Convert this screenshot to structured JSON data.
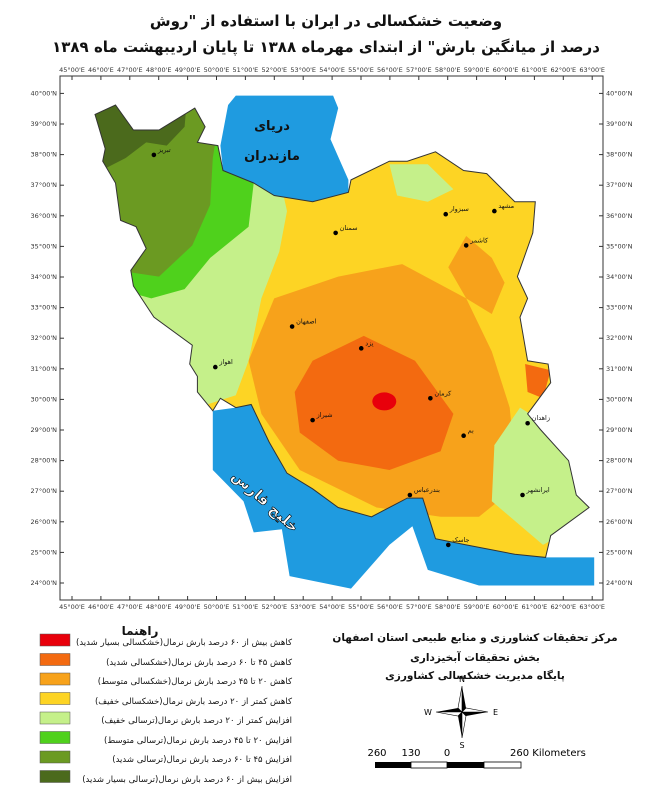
{
  "header": {
    "title_line1": "وضعیت خشکسالی در ایران با استفاده از \"روش",
    "title_line2": "درصد از میانگین بارش\" از ابتدای مهرماه ۱۳۸۸ تا پایان اردیبهشت ماه ۱۳۸۹"
  },
  "map": {
    "lon_ticks": [
      {
        "value": 45,
        "label": "45°00'E"
      },
      {
        "value": 46,
        "label": "46°00'E"
      },
      {
        "value": 47,
        "label": "47°00'E"
      },
      {
        "value": 48,
        "label": "48°00'E"
      },
      {
        "value": 49,
        "label": "49°00'E"
      },
      {
        "value": 50,
        "label": "50°00'E"
      },
      {
        "value": 51,
        "label": "51°00'E"
      },
      {
        "value": 52,
        "label": "52°00'E"
      },
      {
        "value": 53,
        "label": "53°00'E"
      },
      {
        "value": 54,
        "label": "54°00'E"
      },
      {
        "value": 55,
        "label": "55°00'E"
      },
      {
        "value": 56,
        "label": "56°00'E"
      },
      {
        "value": 57,
        "label": "57°00'E"
      },
      {
        "value": 58,
        "label": "58°00'E"
      },
      {
        "value": 59,
        "label": "59°00'E"
      },
      {
        "value": 60,
        "label": "60°00'E"
      },
      {
        "value": 61,
        "label": "61°00'E"
      },
      {
        "value": 62,
        "label": "62°00'E"
      },
      {
        "value": 63,
        "label": "63°00'E"
      }
    ],
    "lat_ticks": [
      {
        "value": 24,
        "label": "24°00'N"
      },
      {
        "value": 25,
        "label": "25°00'N"
      },
      {
        "value": 26,
        "label": "26°00'N"
      },
      {
        "value": 27,
        "label": "27°00'N"
      },
      {
        "value": 28,
        "label": "28°00'N"
      },
      {
        "value": 29,
        "label": "29°00'N"
      },
      {
        "value": 30,
        "label": "30°00'N"
      },
      {
        "value": 31,
        "label": "31°00'N"
      },
      {
        "value": 32,
        "label": "32°00'N"
      },
      {
        "value": 33,
        "label": "33°00'N"
      },
      {
        "value": 34,
        "label": "34°00'N"
      },
      {
        "value": 35,
        "label": "35°00'N"
      },
      {
        "value": 36,
        "label": "36°00'N"
      },
      {
        "value": 37,
        "label": "37°00'N"
      },
      {
        "value": 38,
        "label": "38°00'N"
      },
      {
        "value": 39,
        "label": "39°00'N"
      },
      {
        "value": 40,
        "label": "40°00'N"
      }
    ],
    "caspian_label": [
      "دریای",
      "مازندران"
    ],
    "gulf_label": "خلیج فارس",
    "cities": [
      "تبریز",
      "اصفهان",
      "یزد",
      "کرمان",
      "شیراز",
      "مشهد",
      "زاهدان",
      "بندرعباس",
      "اهواز",
      "سمنان",
      "بم",
      "ایرانشهر",
      "جاسک",
      "سبزوار",
      "کاشمر"
    ]
  },
  "legend": {
    "title": "راهنما",
    "items": [
      {
        "label": "کاهش بیش از ۶۰ درصد بارش نرمال(خشکسالی بسیار شدید)",
        "color": "#e8000b"
      },
      {
        "label": "کاهش ۴۵ تا ۶۰ درصد بارش نرمال(خشکسالی شدید)",
        "color": "#f36a10"
      },
      {
        "label": "کاهش ۲۰ تا ۴۵ درصد بارش نرمال(خشکسالی متوسط)",
        "color": "#f7a21b"
      },
      {
        "label": "کاهش کمتر از ۲۰ درصد بارش نرمال(خشکسالی خفیف)",
        "color": "#fdd424"
      },
      {
        "label": "افزایش کمتر از ۲۰ درصد بارش نرمال(ترسالی خفیف)",
        "color": "#c5f08a"
      },
      {
        "label": "افزایش ۲۰ تا ۴۵ درصد بارش نرمال(ترسالی متوسط)",
        "color": "#4fd11c"
      },
      {
        "label": "افزایش ۴۵ تا ۶۰ درصد بارش نرمال(ترسالی شدید)",
        "color": "#6b9a22"
      },
      {
        "label": "افزایش بیش از ۶۰ درصد بارش نرمال(ترسالی بسیار شدید)",
        "color": "#4b6a1c"
      }
    ]
  },
  "institution": [
    "مرکز تحقیقات کشاورزی و منابع طبیعی استان اصفهان",
    "بخش تحقیقات آبخیزداری",
    "پایگاه مدیریت خشکسالی کشاورزی"
  ],
  "compass": {
    "n": "N",
    "s": "S",
    "e": "E",
    "w": "W"
  },
  "scale": [
    "260",
    "130",
    "0",
    "260 Kilometers"
  ]
}
